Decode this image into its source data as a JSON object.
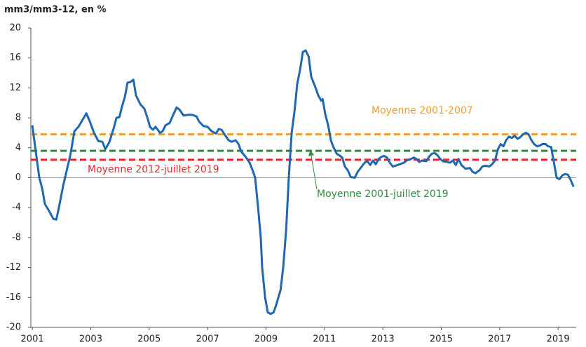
{
  "chart_data": {
    "type": "line",
    "ylabel": "mm3/mm3-12,  en %",
    "xlim": [
      2000.95,
      2019.62
    ],
    "xticks": [
      2001,
      2003,
      2005,
      2007,
      2009,
      2011,
      2013,
      2015,
      2017,
      2019
    ],
    "ylim": [
      -20,
      20
    ],
    "yticks": [
      -20,
      -16,
      -12,
      -8,
      -4,
      0,
      4,
      8,
      12,
      16,
      20
    ],
    "reference_lines": [
      {
        "label": "Moyenne 2001-2007",
        "value": 5.8,
        "color": "#f39c2e"
      },
      {
        "label": "Moyenne 2001-juillet 2019",
        "value": 3.6,
        "color": "#2e8b3e"
      },
      {
        "label": "Moyenne 2012-juillet 2019",
        "value": 2.4,
        "color": "#e8262a"
      }
    ],
    "series": [
      {
        "color": "#1f67b1",
        "x": [
          2001.0,
          2001.1,
          2001.24,
          2001.34,
          2001.43,
          2001.58,
          2001.72,
          2001.82,
          2001.91,
          2002.06,
          2002.15,
          2002.3,
          2002.44,
          2002.58,
          2002.73,
          2002.85,
          2002.97,
          2003.11,
          2003.26,
          2003.4,
          2003.5,
          2003.64,
          2003.78,
          2003.88,
          2003.98,
          2004.07,
          2004.17,
          2004.26,
          2004.36,
          2004.46,
          2004.55,
          2004.7,
          2004.84,
          2004.94,
          2005.03,
          2005.13,
          2005.22,
          2005.37,
          2005.46,
          2005.56,
          2005.7,
          2005.8,
          2005.94,
          2006.04,
          2006.18,
          2006.33,
          2006.47,
          2006.62,
          2006.71,
          2006.86,
          2007.0,
          2007.14,
          2007.29,
          2007.38,
          2007.48,
          2007.58,
          2007.72,
          2007.82,
          2007.96,
          2008.06,
          2008.15,
          2008.3,
          2008.44,
          2008.54,
          2008.63,
          2008.73,
          2008.82,
          2008.87,
          2008.97,
          2009.06,
          2009.16,
          2009.26,
          2009.35,
          2009.5,
          2009.59,
          2009.69,
          2009.78,
          2009.88,
          2009.98,
          2010.07,
          2010.17,
          2010.26,
          2010.36,
          2010.46,
          2010.55,
          2010.7,
          2010.79,
          2010.89,
          2010.94,
          2011.03,
          2011.13,
          2011.22,
          2011.32,
          2011.42,
          2011.51,
          2011.61,
          2011.7,
          2011.8,
          2011.9,
          2012.04,
          2012.14,
          2012.28,
          2012.38,
          2012.47,
          2012.57,
          2012.66,
          2012.76,
          2012.86,
          2012.95,
          2013.05,
          2013.14,
          2013.24,
          2013.34,
          2013.43,
          2013.58,
          2013.72,
          2013.82,
          2013.96,
          2014.06,
          2014.15,
          2014.25,
          2014.34,
          2014.49,
          2014.58,
          2014.68,
          2014.78,
          2014.87,
          2014.97,
          2015.06,
          2015.21,
          2015.3,
          2015.4,
          2015.5,
          2015.59,
          2015.69,
          2015.83,
          2015.98,
          2016.07,
          2016.17,
          2016.31,
          2016.41,
          2016.5,
          2016.65,
          2016.74,
          2016.84,
          2016.94,
          2017.03,
          2017.13,
          2017.22,
          2017.32,
          2017.42,
          2017.51,
          2017.61,
          2017.7,
          2017.8,
          2017.9,
          2017.99,
          2018.09,
          2018.18,
          2018.28,
          2018.38,
          2018.47,
          2018.57,
          2018.66,
          2018.76,
          2018.86,
          2018.95,
          2019.05,
          2019.14,
          2019.24,
          2019.34,
          2019.43,
          2019.53
        ],
        "values": [
          7,
          4,
          0,
          -1.5,
          -3.5,
          -4.5,
          -5.5,
          -5.6,
          -4,
          -1,
          0.5,
          3,
          6.2,
          6.8,
          7.8,
          8.6,
          7.5,
          6,
          4.9,
          4.8,
          3.8,
          4.8,
          6.5,
          8,
          8.1,
          9.5,
          10.8,
          12.7,
          12.8,
          13.1,
          11,
          9.8,
          9.2,
          8,
          6.8,
          6.4,
          6.8,
          6,
          6.2,
          7,
          7.3,
          8.2,
          9.4,
          9.1,
          8.3,
          8.4,
          8.4,
          8.2,
          7.5,
          6.9,
          6.8,
          6.2,
          5.9,
          6.5,
          6.4,
          5.8,
          5,
          4.8,
          5,
          4.5,
          3.5,
          2.8,
          2,
          1,
          0,
          -4,
          -8,
          -12,
          -16,
          -18,
          -18.2,
          -18,
          -17,
          -15,
          -12,
          -7,
          0,
          6,
          9,
          12.5,
          14.5,
          16.8,
          17,
          16.2,
          13.5,
          12,
          11,
          10.3,
          10.5,
          8.5,
          7,
          5,
          4,
          3.2,
          3,
          2.7,
          1.5,
          1,
          0.1,
          0,
          0.8,
          1.5,
          2,
          2.2,
          1.7,
          2.3,
          1.8,
          2.5,
          2.8,
          2.9,
          2.7,
          2,
          1.5,
          1.6,
          1.8,
          2,
          2.3,
          2.5,
          2.7,
          2.5,
          2.1,
          2.3,
          2.2,
          2.8,
          3.2,
          3.3,
          3,
          2.5,
          2.2,
          2.1,
          2,
          2.3,
          1.7,
          2.5,
          1.7,
          1.2,
          1.3,
          0.8,
          0.6,
          1,
          1.5,
          1.6,
          1.5,
          1.8,
          2.3,
          3.8,
          4.5,
          4.2,
          5,
          5.5,
          5.3,
          5.6,
          5.2,
          5.4,
          5.8,
          6,
          5.8,
          5,
          4.5,
          4.2,
          4.3,
          4.5,
          4.5,
          4.2,
          4.1,
          2,
          0,
          -0.2,
          0.3,
          0.5,
          0.4,
          -0.3,
          -1.2
        ]
      }
    ]
  }
}
